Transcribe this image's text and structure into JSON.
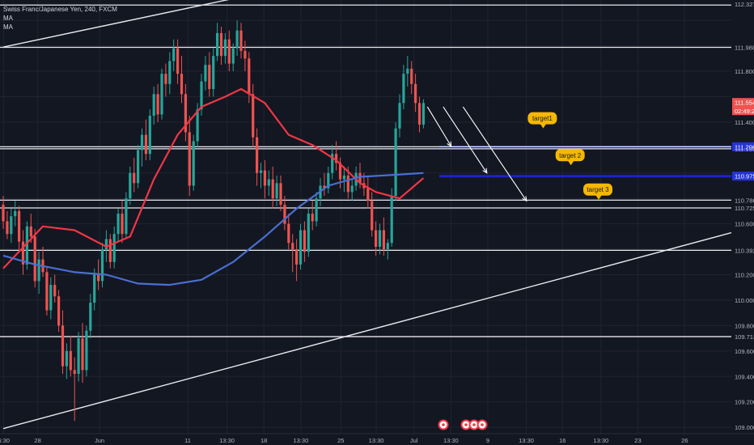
{
  "legend": {
    "title": "Swiss Franc/Japanese Yen, 240, FXCM",
    "ma1": "MA",
    "ma2": "MA"
  },
  "chart_data": {
    "type": "candlestick",
    "symbol": "CHFJPY",
    "interval": "240",
    "source": "FXCM",
    "ylim": [
      108.95,
      112.36
    ],
    "y_ticks": [
      109.0,
      109.2,
      109.4,
      109.6,
      109.8,
      110.0,
      110.2,
      110.4,
      110.6,
      110.8,
      111.0,
      111.2,
      111.4,
      111.6,
      111.8,
      112.0,
      112.2
    ],
    "x_ticks": [
      {
        "label": "6:30",
        "pos": 0.005
      },
      {
        "label": "28",
        "pos": 0.05
      },
      {
        "label": "Jun",
        "pos": 0.132
      },
      {
        "label": "11",
        "pos": 0.249
      },
      {
        "label": "13:30",
        "pos": 0.301
      },
      {
        "label": "18",
        "pos": 0.35
      },
      {
        "label": "13:30",
        "pos": 0.399
      },
      {
        "label": "25",
        "pos": 0.452
      },
      {
        "label": "13:30",
        "pos": 0.499
      },
      {
        "label": "Jul",
        "pos": 0.549
      },
      {
        "label": "13:30",
        "pos": 0.598
      },
      {
        "label": "9",
        "pos": 0.647
      },
      {
        "label": "13:30",
        "pos": 0.698
      },
      {
        "label": "16",
        "pos": 0.746
      },
      {
        "label": "13:30",
        "pos": 0.797
      },
      {
        "label": "23",
        "pos": 0.846
      },
      {
        "label": "26",
        "pos": 0.908
      }
    ],
    "candles": [
      [
        0,
        110.75,
        110.82,
        110.56,
        110.62
      ],
      [
        1,
        110.62,
        110.7,
        110.48,
        110.52
      ],
      [
        2,
        110.52,
        110.72,
        110.45,
        110.66
      ],
      [
        3,
        110.66,
        110.78,
        110.58,
        110.7
      ],
      [
        4,
        110.7,
        110.74,
        110.4,
        110.46
      ],
      [
        5,
        110.46,
        110.55,
        110.2,
        110.28
      ],
      [
        6,
        110.28,
        110.62,
        110.24,
        110.58
      ],
      [
        7,
        110.58,
        110.68,
        110.45,
        110.5
      ],
      [
        8,
        110.5,
        110.56,
        110.1,
        110.15
      ],
      [
        9,
        110.15,
        110.38,
        110.05,
        110.32
      ],
      [
        10,
        110.32,
        110.42,
        110.18,
        110.22
      ],
      [
        11,
        110.22,
        110.26,
        109.88,
        109.92
      ],
      [
        12,
        109.92,
        110.18,
        109.85,
        110.12
      ],
      [
        13,
        110.12,
        110.2,
        109.98,
        110.03
      ],
      [
        14,
        110.03,
        110.08,
        109.75,
        109.8
      ],
      [
        15,
        109.8,
        109.92,
        109.42,
        109.48
      ],
      [
        16,
        109.48,
        109.66,
        109.38,
        109.6
      ],
      [
        17,
        109.6,
        109.72,
        109.4,
        109.45
      ],
      [
        18,
        109.45,
        109.55,
        109.05,
        109.42
      ],
      [
        19,
        109.42,
        109.75,
        109.36,
        109.7
      ],
      [
        20,
        109.7,
        109.82,
        109.35,
        109.45
      ],
      [
        21,
        109.45,
        109.8,
        109.4,
        109.76
      ],
      [
        22,
        109.76,
        110.05,
        109.7,
        109.98
      ],
      [
        23,
        109.98,
        110.25,
        109.92,
        110.2
      ],
      [
        24,
        110.2,
        110.32,
        110.08,
        110.15
      ],
      [
        25,
        110.15,
        110.45,
        110.1,
        110.4
      ],
      [
        26,
        110.4,
        110.55,
        110.3,
        110.48
      ],
      [
        27,
        110.48,
        110.52,
        110.25,
        110.3
      ],
      [
        28,
        110.3,
        110.58,
        110.25,
        110.52
      ],
      [
        29,
        110.52,
        110.72,
        110.46,
        110.68
      ],
      [
        30,
        110.68,
        110.78,
        110.45,
        110.52
      ],
      [
        31,
        110.52,
        110.85,
        110.48,
        110.8
      ],
      [
        32,
        110.8,
        111.05,
        110.75,
        111.0
      ],
      [
        33,
        111.0,
        111.12,
        110.85,
        110.92
      ],
      [
        34,
        110.92,
        111.22,
        110.88,
        111.18
      ],
      [
        35,
        111.18,
        111.35,
        111.05,
        111.3
      ],
      [
        36,
        111.3,
        111.42,
        111.1,
        111.15
      ],
      [
        37,
        111.15,
        111.5,
        111.1,
        111.45
      ],
      [
        38,
        111.45,
        111.68,
        111.38,
        111.62
      ],
      [
        39,
        111.62,
        111.7,
        111.4,
        111.46
      ],
      [
        40,
        111.46,
        111.82,
        111.42,
        111.78
      ],
      [
        41,
        111.78,
        111.86,
        111.6,
        111.7
      ],
      [
        42,
        111.7,
        111.95,
        111.62,
        111.88
      ],
      [
        43,
        111.88,
        112.05,
        111.8,
        111.98
      ],
      [
        44,
        111.98,
        112.05,
        111.7,
        111.78
      ],
      [
        45,
        111.78,
        111.92,
        111.55,
        111.62
      ],
      [
        46,
        111.62,
        111.7,
        111.25,
        111.32
      ],
      [
        47,
        111.32,
        111.45,
        110.82,
        110.9
      ],
      [
        48,
        110.9,
        111.3,
        110.86,
        111.25
      ],
      [
        49,
        111.25,
        111.55,
        111.2,
        111.5
      ],
      [
        50,
        111.5,
        111.78,
        111.45,
        111.72
      ],
      [
        51,
        111.72,
        111.92,
        111.65,
        111.85
      ],
      [
        52,
        111.85,
        111.95,
        111.6,
        111.66
      ],
      [
        53,
        111.66,
        111.98,
        111.6,
        111.92
      ],
      [
        54,
        111.92,
        112.18,
        111.88,
        112.1
      ],
      [
        55,
        112.1,
        112.15,
        111.85,
        111.92
      ],
      [
        56,
        111.92,
        112.1,
        111.86,
        112.05
      ],
      [
        57,
        112.05,
        112.12,
        111.8,
        111.86
      ],
      [
        58,
        111.86,
        112.02,
        111.8,
        111.98
      ],
      [
        59,
        111.98,
        112.2,
        111.92,
        112.12
      ],
      [
        60,
        112.12,
        112.18,
        111.9,
        111.96
      ],
      [
        61,
        111.96,
        112.04,
        111.8,
        111.9
      ],
      [
        62,
        111.9,
        111.95,
        111.55,
        111.62
      ],
      [
        63,
        111.62,
        111.7,
        111.2,
        111.28
      ],
      [
        64,
        111.28,
        111.35,
        110.9,
        111.0
      ],
      [
        65,
        111.0,
        111.08,
        110.88,
        111.02
      ],
      [
        66,
        111.02,
        111.1,
        110.8,
        110.9
      ],
      [
        67,
        110.9,
        111.02,
        110.82,
        110.95
      ],
      [
        68,
        110.95,
        111.05,
        110.72,
        110.8
      ],
      [
        69,
        110.8,
        110.98,
        110.74,
        110.92
      ],
      [
        70,
        110.92,
        110.98,
        110.7,
        110.75
      ],
      [
        71,
        110.75,
        110.82,
        110.55,
        110.6
      ],
      [
        72,
        110.6,
        110.68,
        110.4,
        110.45
      ],
      [
        73,
        110.45,
        110.52,
        110.22,
        110.4
      ],
      [
        74,
        110.4,
        110.48,
        110.15,
        110.28
      ],
      [
        75,
        110.28,
        110.6,
        110.24,
        110.55
      ],
      [
        76,
        110.55,
        110.62,
        110.3,
        110.38
      ],
      [
        77,
        110.38,
        110.72,
        110.34,
        110.68
      ],
      [
        78,
        110.68,
        110.78,
        110.55,
        110.62
      ],
      [
        79,
        110.62,
        110.85,
        110.58,
        110.8
      ],
      [
        80,
        110.8,
        110.96,
        110.74,
        110.9
      ],
      [
        81,
        110.9,
        111.0,
        110.82,
        110.88
      ],
      [
        82,
        110.88,
        111.05,
        110.84,
        111.0
      ],
      [
        83,
        111.0,
        111.22,
        110.95,
        111.15
      ],
      [
        84,
        111.15,
        111.25,
        111.02,
        111.08
      ],
      [
        85,
        111.08,
        111.12,
        110.88,
        110.95
      ],
      [
        86,
        110.95,
        111.05,
        110.85,
        110.98
      ],
      [
        87,
        110.98,
        111.05,
        110.8,
        110.85
      ],
      [
        88,
        110.85,
        110.95,
        110.78,
        110.9
      ],
      [
        89,
        110.9,
        111.05,
        110.86,
        111.0
      ],
      [
        90,
        111.0,
        111.08,
        110.88,
        110.92
      ],
      [
        91,
        110.92,
        111.0,
        110.82,
        110.88
      ],
      [
        92,
        110.88,
        110.98,
        110.72,
        110.78
      ],
      [
        93,
        110.78,
        110.85,
        110.5,
        110.55
      ],
      [
        94,
        110.55,
        110.62,
        110.35,
        110.42
      ],
      [
        95,
        110.42,
        110.6,
        110.36,
        110.55
      ],
      [
        96,
        110.55,
        110.65,
        110.35,
        110.4
      ],
      [
        97,
        110.4,
        110.48,
        110.32,
        110.45
      ],
      [
        98,
        110.45,
        110.88,
        110.42,
        110.82
      ],
      [
        99,
        110.82,
        111.4,
        110.78,
        111.35
      ],
      [
        100,
        111.35,
        111.62,
        111.28,
        111.55
      ],
      [
        101,
        111.55,
        111.85,
        111.5,
        111.78
      ],
      [
        102,
        111.78,
        111.92,
        111.68,
        111.82
      ],
      [
        103,
        111.82,
        111.88,
        111.62,
        111.7
      ],
      [
        104,
        111.7,
        111.78,
        111.48,
        111.55
      ],
      [
        105,
        111.55,
        111.6,
        111.32,
        111.38
      ],
      [
        106,
        111.38,
        111.58,
        111.35,
        111.55
      ]
    ],
    "moving_averages": [
      {
        "name": "MA",
        "color": "#f23645",
        "points": [
          [
            0,
            110.25
          ],
          [
            10,
            110.58
          ],
          [
            18,
            110.55
          ],
          [
            26,
            110.42
          ],
          [
            32,
            110.5
          ],
          [
            38,
            110.95
          ],
          [
            44,
            111.3
          ],
          [
            50,
            111.52
          ],
          [
            56,
            111.6
          ],
          [
            60,
            111.66
          ],
          [
            66,
            111.55
          ],
          [
            72,
            111.3
          ],
          [
            78,
            111.22
          ],
          [
            84,
            111.1
          ],
          [
            90,
            110.92
          ],
          [
            94,
            110.85
          ],
          [
            100,
            110.8
          ],
          [
            106,
            110.96
          ]
        ]
      },
      {
        "name": "MA",
        "color": "#4a6fd1",
        "points": [
          [
            0,
            110.35
          ],
          [
            8,
            110.28
          ],
          [
            18,
            110.22
          ],
          [
            26,
            110.2
          ],
          [
            34,
            110.13
          ],
          [
            42,
            110.12
          ],
          [
            50,
            110.16
          ],
          [
            58,
            110.3
          ],
          [
            66,
            110.5
          ],
          [
            74,
            110.72
          ],
          [
            82,
            110.9
          ],
          [
            90,
            110.97
          ],
          [
            96,
            110.98
          ],
          [
            106,
            111.0
          ]
        ]
      }
    ],
    "trend_lines": [
      {
        "from": [
          0,
          111.99
        ],
        "to": [
          70,
          112.45
        ]
      },
      {
        "from": [
          0,
          108.99
        ],
        "to": [
          186,
          110.55
        ]
      }
    ],
    "horizontal_lines": [
      112.32,
      111.988,
      111.206,
      111.19,
      110.786,
      110.725,
      110.392,
      109.713
    ],
    "projection_arrows": [
      {
        "from": [
          107,
          111.52
        ],
        "to": [
          113,
          111.21
        ]
      },
      {
        "from": [
          111,
          111.52
        ],
        "to": [
          122,
          111.0
        ]
      },
      {
        "from": [
          116,
          111.52
        ],
        "to": [
          132,
          110.78
        ]
      }
    ],
    "price_labels": [
      {
        "value": 112.327,
        "text": "112.327"
      },
      {
        "value": 111.988,
        "text": "111.988"
      },
      {
        "value": 111.8,
        "text": "111.800"
      },
      {
        "value": 111.554,
        "text": "111.554",
        "highlight": "current"
      },
      {
        "value": 111.49,
        "text": "02:49:23",
        "highlight": "current"
      },
      {
        "value": 111.4,
        "text": "111.400"
      },
      {
        "value": 111.206,
        "text": "111.206",
        "highlight": "blue"
      },
      {
        "value": 111.19,
        "text": "111.190"
      },
      {
        "value": 110.975,
        "text": "110.975",
        "highlight": "blue"
      },
      {
        "value": 110.786,
        "text": "110.786"
      },
      {
        "value": 110.725,
        "text": "110.725"
      },
      {
        "value": 110.6,
        "text": "110.600"
      },
      {
        "value": 110.392,
        "text": "110.392"
      },
      {
        "value": 110.2,
        "text": "110.200"
      },
      {
        "value": 110.0,
        "text": "110.000"
      },
      {
        "value": 109.8,
        "text": "109.800"
      },
      {
        "value": 109.713,
        "text": "109.713"
      },
      {
        "value": 109.6,
        "text": "109.600"
      },
      {
        "value": 109.4,
        "text": "109.400"
      },
      {
        "value": 109.2,
        "text": "109.200"
      },
      {
        "value": 109.0,
        "text": "109.000"
      }
    ],
    "target_zones": [
      {
        "value": 111.206,
        "from": 110,
        "to": 186
      },
      {
        "value": 110.975,
        "from": 110,
        "to": 186
      }
    ],
    "targets": [
      {
        "label": "target1",
        "bar": 136,
        "value": 111.43
      },
      {
        "label": "target 2",
        "bar": 143,
        "value": 111.14
      },
      {
        "label": "target 3",
        "bar": 150,
        "value": 110.87
      }
    ],
    "event_icons": 4,
    "colors": {
      "up": "#26a69a",
      "down": "#ef5350",
      "background": "#131722",
      "text": "#b2b5be",
      "target": "#f5b800",
      "zone": "#1e22c8"
    }
  }
}
